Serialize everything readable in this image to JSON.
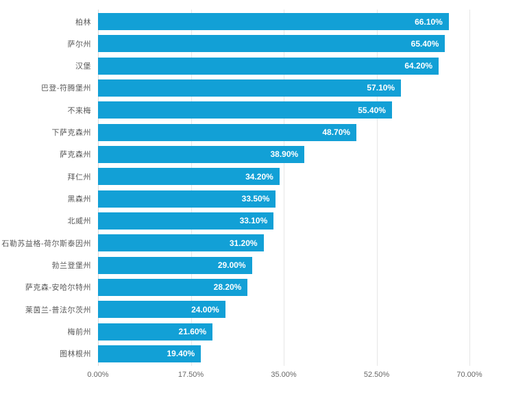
{
  "chart_data": {
    "type": "bar",
    "orientation": "horizontal",
    "title": "",
    "xlabel": "",
    "ylabel": "",
    "legend": "none",
    "grid": "vertical-only",
    "xlim": [
      0,
      70
    ],
    "x_ticks": [
      "0.00%",
      "17.50%",
      "35.00%",
      "52.50%",
      "70.00%"
    ],
    "categories": [
      "柏林",
      "萨尔州",
      "汉堡",
      "巴登-符腾堡州",
      "不来梅",
      "下萨克森州",
      "萨克森州",
      "拜仁州",
      "黑森州",
      "北威州",
      "石勒苏益格-荷尔斯泰因州",
      "勃兰登堡州",
      "萨克森-安哈尔特州",
      "莱茵兰-普法尔茨州",
      "梅前州",
      "图林根州"
    ],
    "values": [
      66.1,
      65.4,
      64.2,
      57.1,
      55.4,
      48.7,
      38.9,
      34.2,
      33.5,
      33.1,
      31.2,
      29.0,
      28.2,
      24.0,
      21.6,
      19.4
    ],
    "value_labels": [
      "66.10%",
      "65.40%",
      "64.20%",
      "57.10%",
      "55.40%",
      "48.70%",
      "38.90%",
      "34.20%",
      "33.50%",
      "33.10%",
      "31.20%",
      "29.00%",
      "28.20%",
      "24.00%",
      "21.60%",
      "19.40%"
    ],
    "colors": {
      "bar": "#12a0d6",
      "value_label": "#ffffff",
      "category_label": "#595959",
      "tick_label": "#666666",
      "gridline": "#e6e6e6",
      "axis_line": "#d9d9d9",
      "background": "#ffffff"
    }
  }
}
